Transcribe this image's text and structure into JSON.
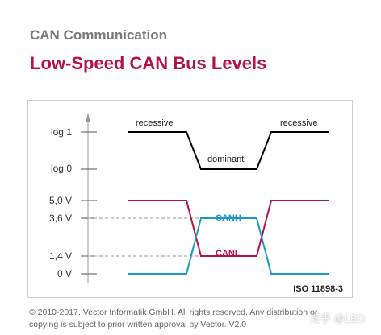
{
  "header": {
    "subtitle": "CAN Communication",
    "title": "Low-Speed CAN Bus Levels"
  },
  "diagram": {
    "level_labels": {
      "log1": "log 1",
      "log0": "log 0",
      "v5": "5,0 V",
      "v36": "3,6 V",
      "v14": "1,4 V",
      "v0": "0 V"
    },
    "state_labels": {
      "recessive_left": "recessive",
      "dominant": "dominant",
      "recessive_right": "recessive"
    },
    "signal_labels": {
      "canh": "CANH",
      "canl": "CANL"
    },
    "standard": "ISO 11898-3",
    "colors": {
      "canh": "#1e96c8",
      "canl": "#b5124a",
      "logic": "#000000",
      "title": "#b5124a"
    }
  },
  "footer": {
    "line1": "© 2010-2017. Vector Informatik GmbH. All rights reserved. Any distribution or",
    "line2": "copying is subject to prior written approval by Vector. V2.0"
  },
  "watermark": "知乎 @LBD"
}
